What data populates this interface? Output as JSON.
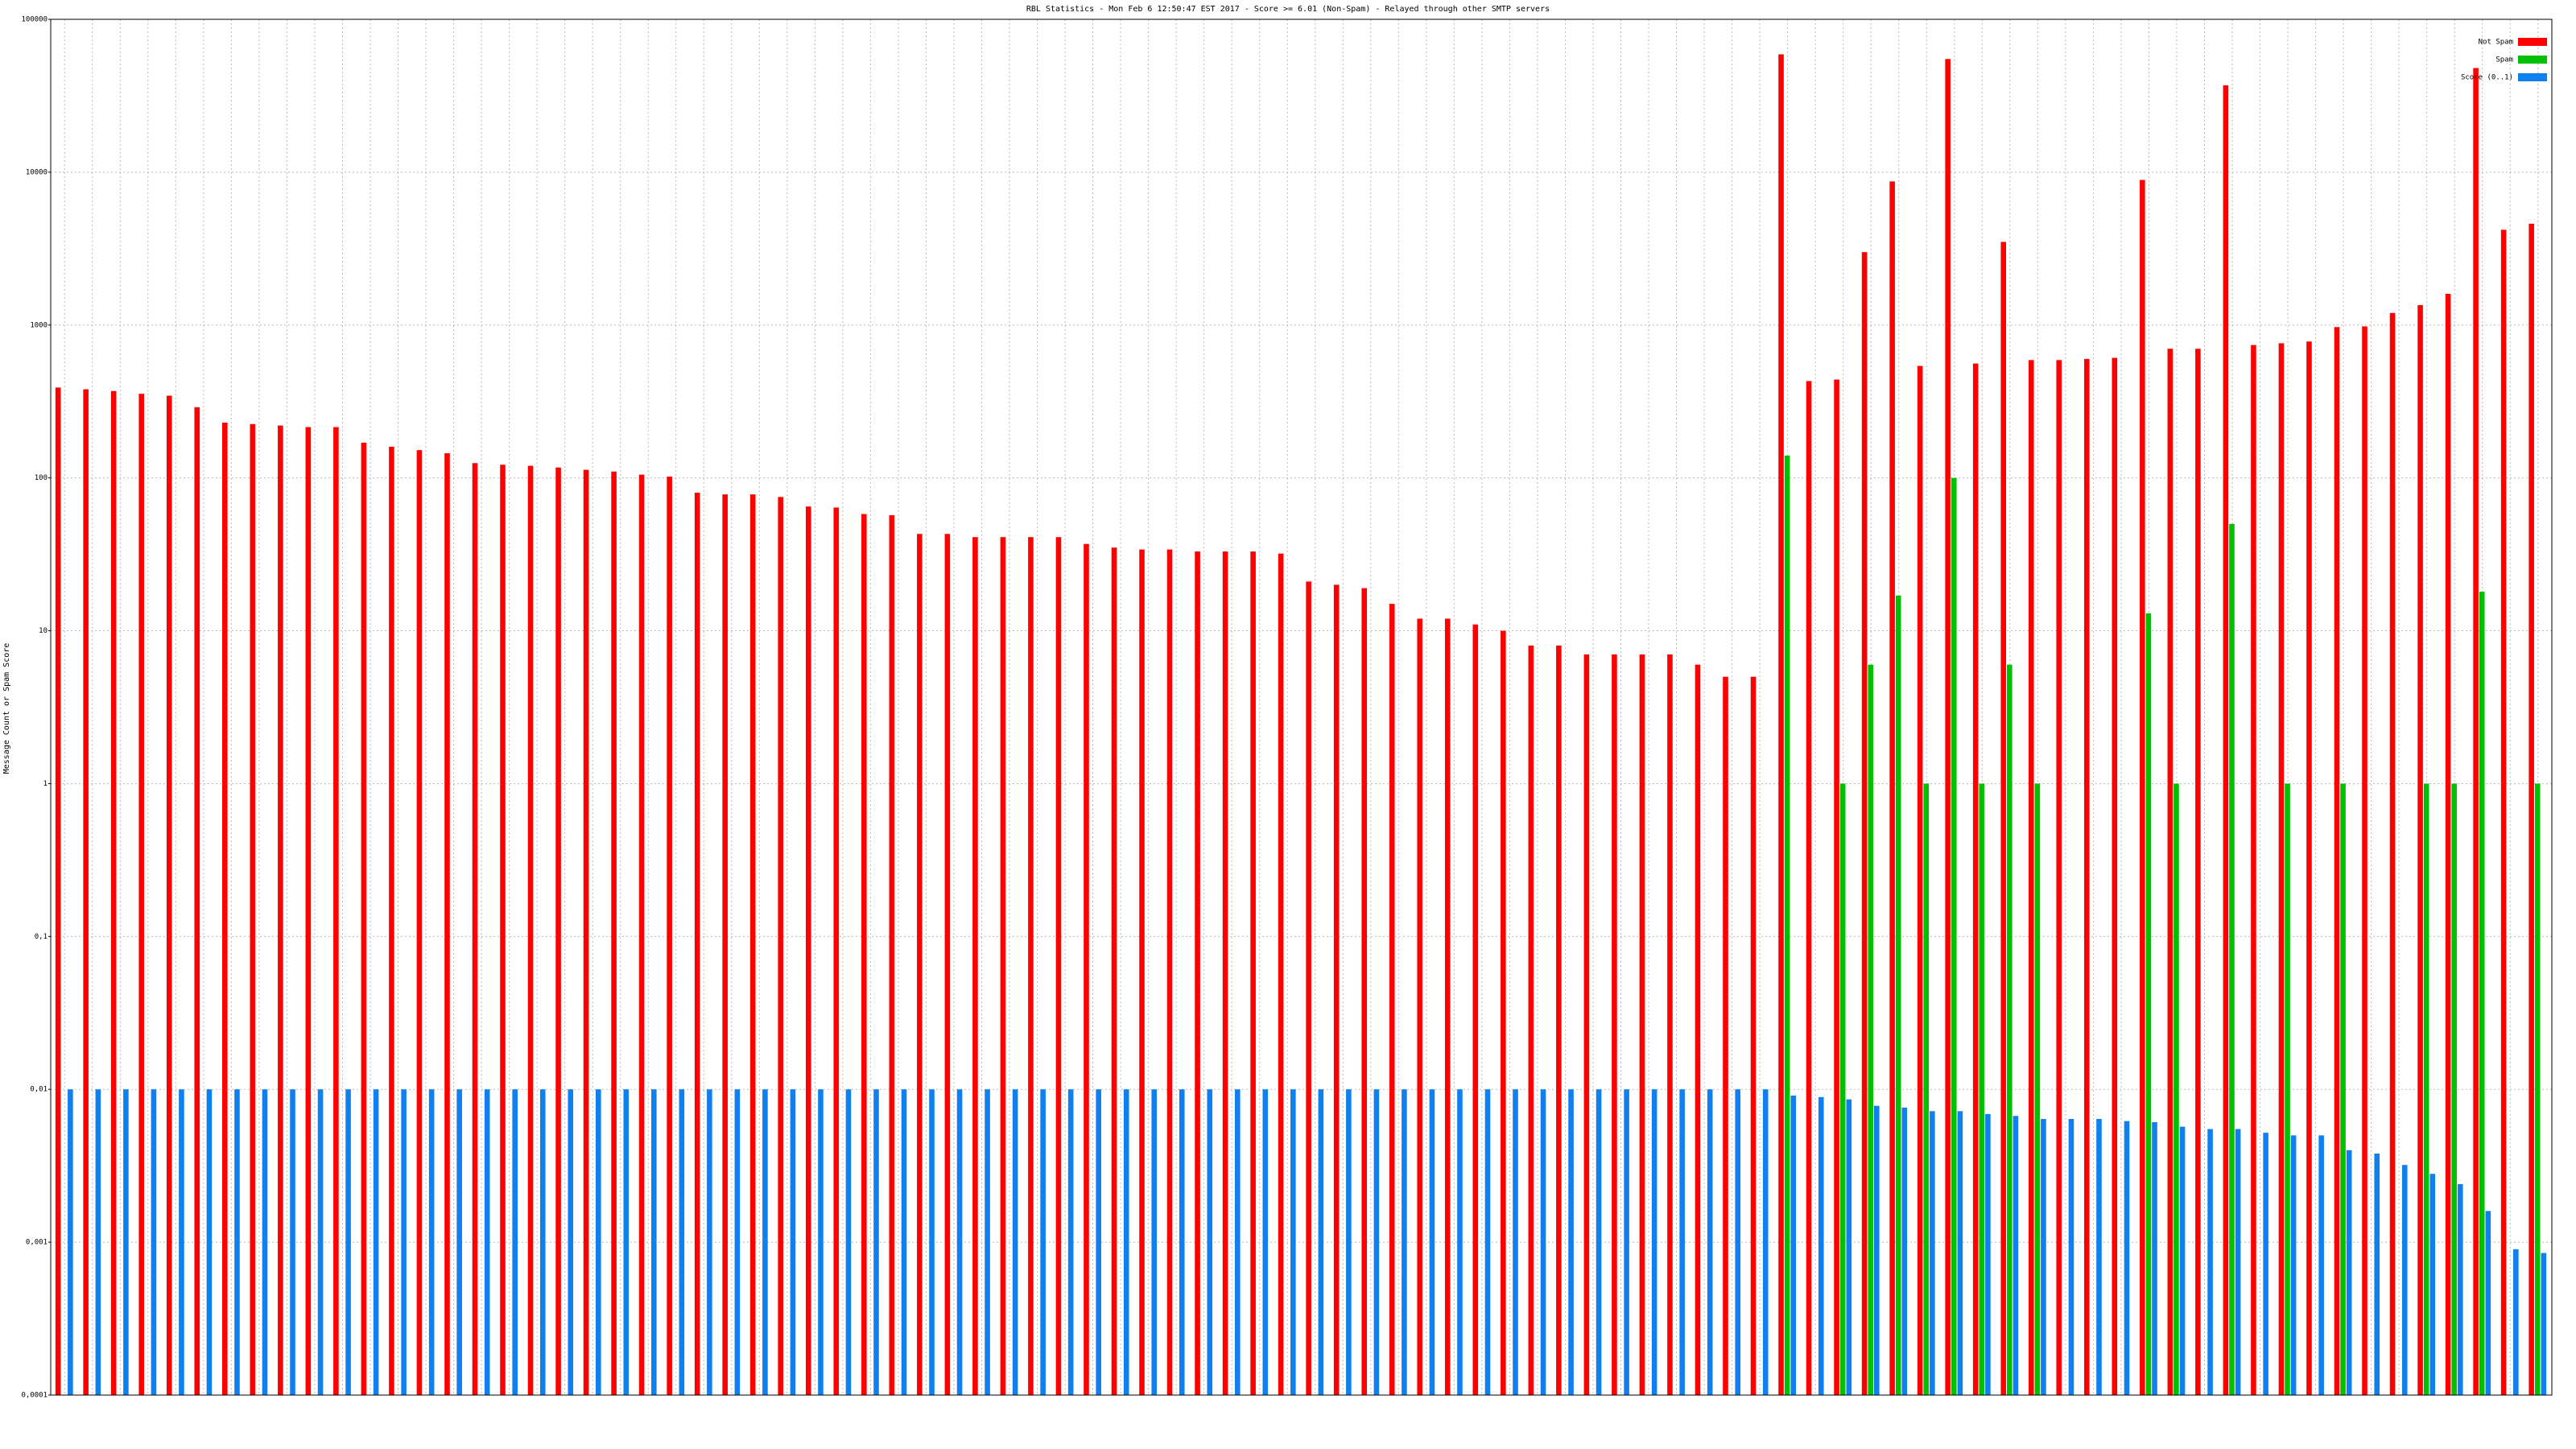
{
  "chart_data": {
    "type": "bar",
    "title": "RBL Statistics - Mon Feb  6 12:50:47 EST 2017 - Score >= 6.01 (Non-Spam) - Relayed through other SMTP servers",
    "ylabel": "Message Count or Spam Score",
    "log_scale": true,
    "grid": true,
    "legend": "top-right",
    "categories": [
      null,
      null,
      null,
      null,
      null,
      null,
      null,
      null,
      null,
      null,
      null,
      null,
      null,
      null,
      null,
      null,
      null,
      null,
      null,
      null,
      null,
      null,
      null,
      null,
      null,
      null,
      null,
      null,
      null,
      null,
      null,
      null,
      null,
      null,
      null,
      null,
      null,
      null,
      null,
      null,
      null,
      null,
      null,
      null,
      null,
      null,
      null,
      null,
      null,
      null,
      null,
      null,
      null,
      null,
      null,
      null,
      null,
      null,
      null,
      null,
      null,
      null,
      null,
      null,
      null,
      null,
      null,
      null,
      null,
      null,
      null,
      null,
      null,
      null,
      null,
      null,
      null,
      null,
      null,
      null,
      null,
      null,
      null,
      null,
      null,
      null,
      null,
      null,
      null,
      null
    ],
    "series": [
      {
        "name": "Not Spam",
        "color": "#ff0000",
        "values": [
          390,
          380,
          370,
          355,
          345,
          290,
          230,
          225,
          220,
          215,
          215,
          170,
          160,
          152,
          145,
          125,
          122,
          120,
          117,
          113,
          110,
          105,
          102,
          80,
          78,
          78,
          75,
          65,
          64,
          58,
          57,
          43,
          43,
          41,
          41,
          41,
          41,
          37,
          35,
          34,
          34,
          33,
          33,
          33,
          32,
          21,
          20,
          19,
          15,
          12,
          12,
          11,
          10,
          8,
          8,
          7,
          7,
          7,
          7,
          6,
          5,
          5,
          59000,
          430,
          440,
          3000,
          8700,
          540,
          55000,
          560,
          3500,
          590,
          590,
          600,
          610,
          8900,
          700,
          700,
          37000,
          740,
          760,
          780,
          970,
          980,
          1200,
          1350,
          1600,
          48000,
          4200,
          4600
        ]
      },
      {
        "name": "Spam",
        "color": "#00c000",
        "values": [
          null,
          null,
          null,
          null,
          null,
          null,
          null,
          null,
          null,
          null,
          null,
          null,
          null,
          null,
          null,
          null,
          null,
          null,
          null,
          null,
          null,
          null,
          null,
          null,
          null,
          null,
          null,
          null,
          null,
          null,
          null,
          null,
          null,
          null,
          null,
          null,
          null,
          null,
          null,
          null,
          null,
          null,
          null,
          null,
          null,
          null,
          null,
          null,
          null,
          null,
          null,
          null,
          null,
          null,
          null,
          null,
          null,
          null,
          null,
          null,
          null,
          null,
          140,
          null,
          1,
          6,
          17,
          1,
          100,
          1,
          6,
          1,
          null,
          null,
          null,
          13,
          1,
          null,
          50,
          null,
          1,
          null,
          1,
          null,
          null,
          1,
          1,
          18,
          null,
          1
        ]
      },
      {
        "name": "Score (0..1)",
        "color": "#1080f0",
        "values": [
          0.01,
          0.01,
          0.01,
          0.01,
          0.01,
          0.01,
          0.01,
          0.01,
          0.01,
          0.01,
          0.01,
          0.01,
          0.01,
          0.01,
          0.01,
          0.01,
          0.01,
          0.01,
          0.01,
          0.01,
          0.01,
          0.01,
          0.01,
          0.01,
          0.01,
          0.01,
          0.01,
          0.01,
          0.01,
          0.01,
          0.01,
          0.01,
          0.01,
          0.01,
          0.01,
          0.01,
          0.01,
          0.01,
          0.01,
          0.01,
          0.01,
          0.01,
          0.01,
          0.01,
          0.01,
          0.01,
          0.01,
          0.01,
          0.01,
          0.01,
          0.01,
          0.01,
          0.01,
          0.01,
          0.01,
          0.01,
          0.01,
          0.01,
          0.01,
          0.01,
          0.01,
          0.01,
          0.0091,
          0.0089,
          0.0086,
          0.0078,
          0.0076,
          0.0072,
          0.0072,
          0.0069,
          0.0067,
          0.0064,
          0.0064,
          0.0064,
          0.0062,
          0.0061,
          0.0057,
          0.0055,
          0.0055,
          0.0052,
          0.005,
          0.005,
          0.004,
          0.0038,
          0.0032,
          0.0028,
          0.0024,
          0.0016,
          0.0009,
          0.00085
        ]
      }
    ],
    "ylim": [
      0.0001,
      100000
    ],
    "yticks": [
      {
        "value": 0.0001,
        "label": "0,0001"
      },
      {
        "value": 0.001,
        "label": "0,001"
      },
      {
        "value": 0.01,
        "label": "0,01"
      },
      {
        "value": 0.1,
        "label": "0,1"
      },
      1,
      10,
      100,
      1000,
      10000,
      100000
    ]
  }
}
